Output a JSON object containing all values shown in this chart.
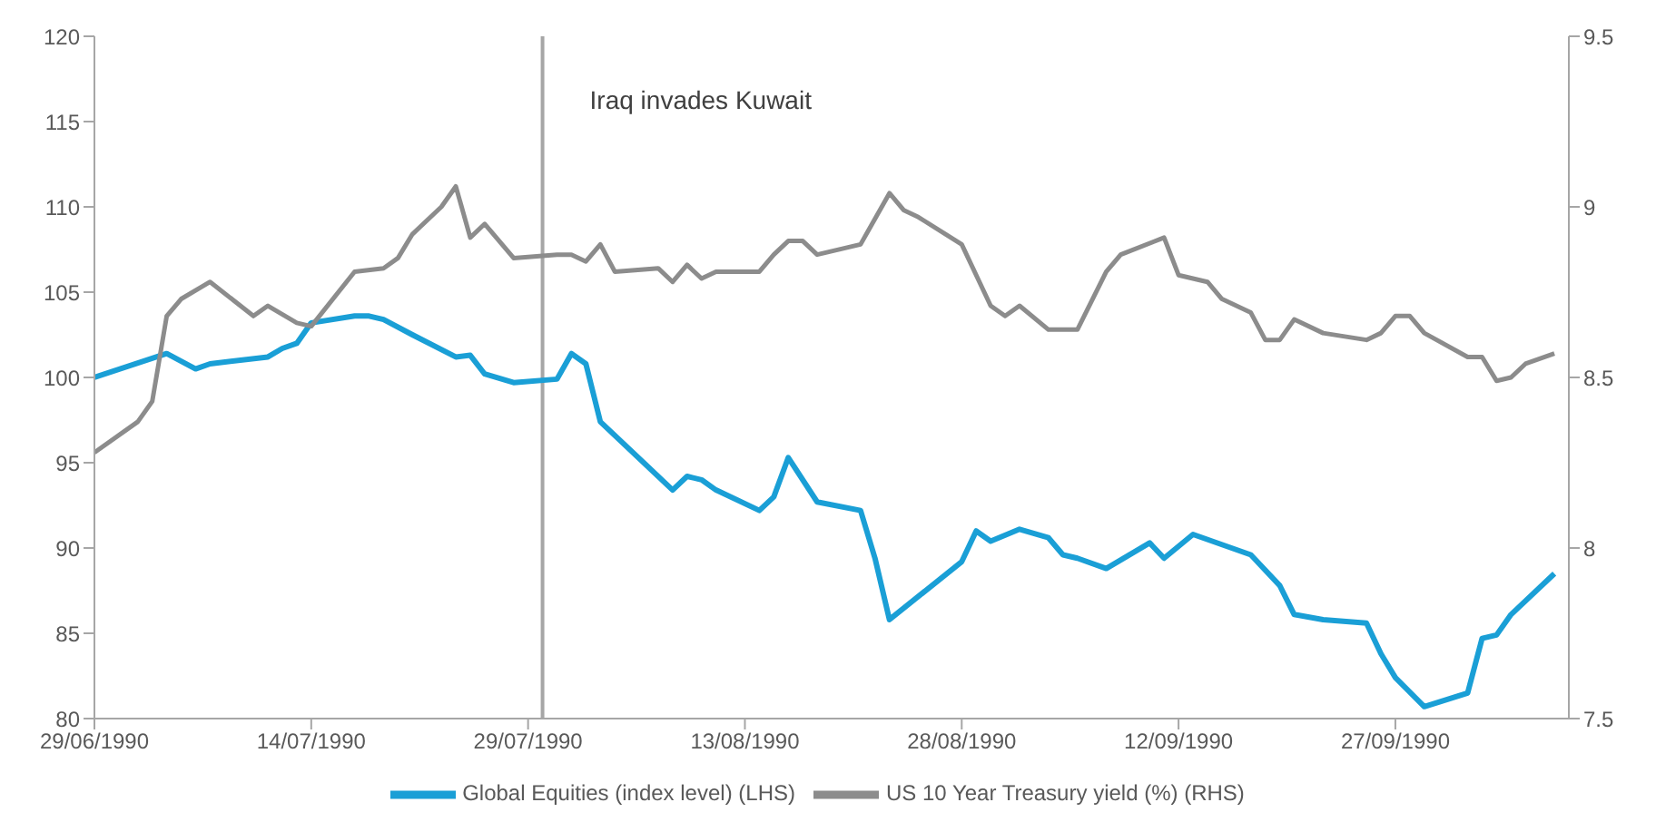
{
  "chart_data": {
    "type": "line",
    "xlim": [
      "1990-06-29",
      "1990-10-09"
    ],
    "xticks": [
      {
        "value": "1990-06-29",
        "label": "29/06/1990"
      },
      {
        "value": "1990-07-14",
        "label": "14/07/1990"
      },
      {
        "value": "1990-07-29",
        "label": "29/07/1990"
      },
      {
        "value": "1990-08-13",
        "label": "13/08/1990"
      },
      {
        "value": "1990-08-28",
        "label": "28/08/1990"
      },
      {
        "value": "1990-09-12",
        "label": "12/09/1990"
      },
      {
        "value": "1990-09-27",
        "label": "27/09/1990"
      }
    ],
    "ylim": [
      80,
      120
    ],
    "yticks": [
      80,
      85,
      90,
      95,
      100,
      105,
      110,
      115,
      120
    ],
    "y2lim": [
      7.5,
      9.5
    ],
    "y2ticks": [
      7.5,
      8,
      8.5,
      9,
      9.5
    ],
    "series": [
      {
        "name": "Global Equities (index level) (LHS)",
        "color": "#1a9fd6",
        "x": [
          "1990-06-29",
          "1990-07-04",
          "1990-07-06",
          "1990-07-07",
          "1990-07-11",
          "1990-07-12",
          "1990-07-13",
          "1990-07-14",
          "1990-07-17",
          "1990-07-18",
          "1990-07-19",
          "1990-07-21",
          "1990-07-24",
          "1990-07-25",
          "1990-07-26",
          "1990-07-28",
          "1990-07-31",
          "1990-08-01",
          "1990-08-02",
          "1990-08-03",
          "1990-08-08",
          "1990-08-09",
          "1990-08-10",
          "1990-08-11",
          "1990-08-14",
          "1990-08-15",
          "1990-08-16",
          "1990-08-18",
          "1990-08-21",
          "1990-08-22",
          "1990-08-23",
          "1990-08-28",
          "1990-08-29",
          "1990-08-30",
          "1990-09-01",
          "1990-09-03",
          "1990-09-04",
          "1990-09-05",
          "1990-09-07",
          "1990-09-10",
          "1990-09-11",
          "1990-09-13",
          "1990-09-17",
          "1990-09-19",
          "1990-09-20",
          "1990-09-22",
          "1990-09-25",
          "1990-09-26",
          "1990-09-27",
          "1990-09-29",
          "1990-10-02",
          "1990-10-03",
          "1990-10-04",
          "1990-10-05",
          "1990-10-08"
        ],
        "values": [
          100,
          101.4,
          100.5,
          100.8,
          101.2,
          101.7,
          102.0,
          103.2,
          103.6,
          103.6,
          103.4,
          102.5,
          101.2,
          101.3,
          100.2,
          99.7,
          99.9,
          101.4,
          100.8,
          97.4,
          93.4,
          94.2,
          94.0,
          93.4,
          92.2,
          93.0,
          95.3,
          92.7,
          92.2,
          89.4,
          85.8,
          89.2,
          91.0,
          90.4,
          91.1,
          90.6,
          89.6,
          89.4,
          88.8,
          90.3,
          89.4,
          90.8,
          89.6,
          87.8,
          86.1,
          85.8,
          85.6,
          83.8,
          82.4,
          80.7,
          81.5,
          84.7,
          84.9,
          86.1,
          88.5
        ]
      },
      {
        "name": "US 10 Year Treasury yield (%) (RHS)",
        "color": "#8c8c8c",
        "axis": "y2",
        "x": [
          "1990-06-29",
          "1990-07-02",
          "1990-07-03",
          "1990-07-04",
          "1990-07-05",
          "1990-07-07",
          "1990-07-10",
          "1990-07-11",
          "1990-07-13",
          "1990-07-14",
          "1990-07-17",
          "1990-07-19",
          "1990-07-20",
          "1990-07-21",
          "1990-07-23",
          "1990-07-24",
          "1990-07-25",
          "1990-07-26",
          "1990-07-28",
          "1990-07-31",
          "1990-08-01",
          "1990-08-02",
          "1990-08-03",
          "1990-08-04",
          "1990-08-07",
          "1990-08-08",
          "1990-08-09",
          "1990-08-10",
          "1990-08-11",
          "1990-08-14",
          "1990-08-15",
          "1990-08-16",
          "1990-08-17",
          "1990-08-18",
          "1990-08-21",
          "1990-08-23",
          "1990-08-24",
          "1990-08-25",
          "1990-08-28",
          "1990-08-30",
          "1990-08-31",
          "1990-09-01",
          "1990-09-03",
          "1990-09-05",
          "1990-09-07",
          "1990-09-08",
          "1990-09-11",
          "1990-09-12",
          "1990-09-14",
          "1990-09-15",
          "1990-09-17",
          "1990-09-18",
          "1990-09-19",
          "1990-09-20",
          "1990-09-22",
          "1990-09-25",
          "1990-09-26",
          "1990-09-27",
          "1990-09-28",
          "1990-09-29",
          "1990-10-02",
          "1990-10-03",
          "1990-10-04",
          "1990-10-05",
          "1990-10-06",
          "1990-10-08"
        ],
        "values": [
          8.28,
          8.37,
          8.43,
          8.68,
          8.73,
          8.78,
          8.68,
          8.71,
          8.66,
          8.65,
          8.81,
          8.82,
          8.85,
          8.92,
          9.0,
          9.06,
          8.91,
          8.95,
          8.85,
          8.86,
          8.86,
          8.84,
          8.89,
          8.81,
          8.82,
          8.78,
          8.83,
          8.79,
          8.81,
          8.81,
          8.86,
          8.9,
          8.9,
          8.86,
          8.89,
          9.04,
          8.99,
          8.97,
          8.89,
          8.71,
          8.68,
          8.71,
          8.64,
          8.64,
          8.81,
          8.86,
          8.91,
          8.8,
          8.78,
          8.73,
          8.69,
          8.61,
          8.61,
          8.67,
          8.63,
          8.61,
          8.63,
          8.68,
          8.68,
          8.63,
          8.56,
          8.56,
          8.49,
          8.5,
          8.54,
          8.57
        ]
      }
    ],
    "ref_lines": [
      {
        "axis": "x",
        "value": "1990-07-30",
        "label": "Iraq invades Kuwait",
        "color": "#a6a6a6"
      }
    ],
    "grid": false,
    "legend": "bottom",
    "marker": "none",
    "line_style": "solid"
  }
}
